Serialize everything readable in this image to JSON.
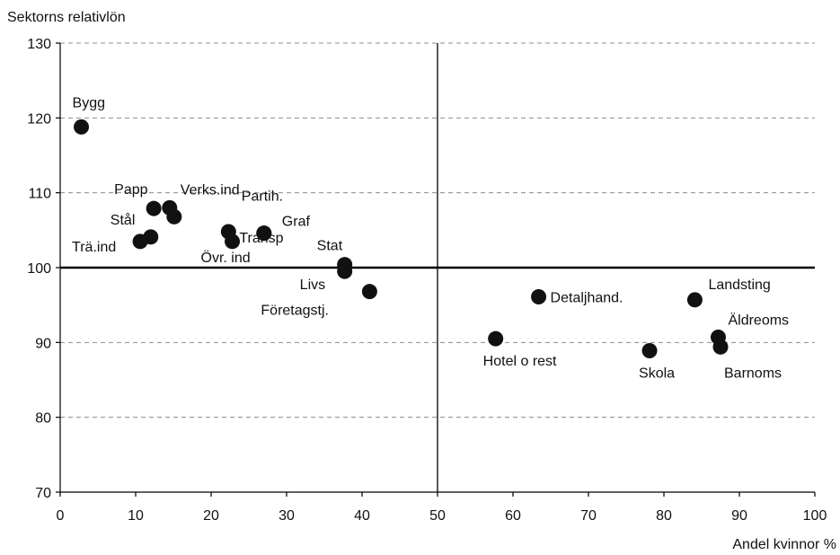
{
  "chart_data": {
    "type": "scatter",
    "ylabel": "Sektorns relativlön",
    "xlabel": "Andel kvinnor %",
    "xlim": [
      0,
      100
    ],
    "ylim": [
      70,
      130
    ],
    "x_ticks": [
      0,
      10,
      20,
      30,
      40,
      50,
      60,
      70,
      80,
      90,
      100
    ],
    "y_ticks": [
      70,
      80,
      90,
      100,
      110,
      120,
      130
    ],
    "grid": "horizontal-dashed",
    "reference_lines": {
      "x": 50,
      "y": 100
    },
    "point_color": "#111111",
    "points": [
      {
        "label": "Bygg",
        "x": 2.8,
        "y": 118.8
      },
      {
        "label": "Papp",
        "x": 12.4,
        "y": 107.9
      },
      {
        "label": "Verks.ind",
        "x": 14.5,
        "y": 108.0
      },
      {
        "label": "",
        "x": 15.1,
        "y": 106.8
      },
      {
        "label": "Stål",
        "x": 12.0,
        "y": 104.1
      },
      {
        "label": "Trä.ind",
        "x": 10.6,
        "y": 103.5
      },
      {
        "label": "Transp",
        "x": 22.3,
        "y": 104.8
      },
      {
        "label": "Övr. ind",
        "x": 22.8,
        "y": 103.5
      },
      {
        "label": "Partih.",
        "x": 27.0,
        "y": 104.6
      },
      {
        "label": "Graf",
        "x": 27.0,
        "y": 104.6
      },
      {
        "label": "Stat",
        "x": 37.7,
        "y": 100.4
      },
      {
        "label": "Livs",
        "x": 37.7,
        "y": 99.5
      },
      {
        "label": "Företagstj.",
        "x": 41.0,
        "y": 96.8
      },
      {
        "label": "Hotel o rest",
        "x": 57.7,
        "y": 90.5
      },
      {
        "label": "Detaljhand.",
        "x": 63.4,
        "y": 96.1
      },
      {
        "label": "Skola",
        "x": 78.1,
        "y": 88.9
      },
      {
        "label": "Landsting",
        "x": 84.1,
        "y": 95.7
      },
      {
        "label": "Äldreoms",
        "x": 87.2,
        "y": 90.7
      },
      {
        "label": "Barnoms",
        "x": 87.5,
        "y": 89.4
      }
    ]
  }
}
